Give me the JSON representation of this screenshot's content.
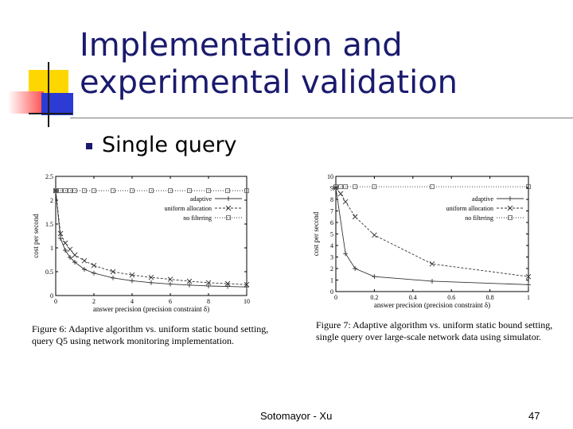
{
  "slide": {
    "title_line1": "Implementation and",
    "title_line2": "experimental validation",
    "bullet": "Single query",
    "footer_author": "Sotomayor - Xu",
    "footer_page": "47",
    "colors": {
      "title": "#1a1a6e",
      "deco_yellow": "#ffd700",
      "deco_red": "#ff4d4d",
      "deco_blue": "#2b3bd4"
    }
  },
  "chart_data": [
    {
      "type": "line",
      "xlabel": "answer precision (precision constraint δ)",
      "ylabel": "cost per second",
      "xlim": [
        0,
        10
      ],
      "ylim": [
        0,
        2.5
      ],
      "xticks": [
        0,
        2,
        4,
        6,
        8,
        10
      ],
      "yticks": [
        0,
        0.5,
        1,
        1.5,
        2,
        2.5
      ],
      "ytick_labels": [
        "0",
        "0.5",
        "1",
        "1.5",
        "2",
        "2.5"
      ],
      "legend_position": "top-right",
      "series": [
        {
          "name": "adaptive",
          "marker": "plus",
          "dash": "solid",
          "x": [
            0,
            0.25,
            0.5,
            0.75,
            1,
            1.5,
            2,
            3,
            4,
            5,
            6,
            7,
            8,
            9,
            10
          ],
          "y": [
            2.2,
            1.2,
            0.95,
            0.8,
            0.7,
            0.55,
            0.47,
            0.37,
            0.31,
            0.27,
            0.24,
            0.22,
            0.2,
            0.19,
            0.18
          ]
        },
        {
          "name": "uniform allocation",
          "marker": "x",
          "dash": "dashed",
          "x": [
            0,
            0.25,
            0.5,
            0.75,
            1,
            1.5,
            2,
            3,
            4,
            5,
            6,
            7,
            8,
            9,
            10
          ],
          "y": [
            2.2,
            1.3,
            1.1,
            0.97,
            0.85,
            0.73,
            0.63,
            0.5,
            0.43,
            0.38,
            0.34,
            0.3,
            0.27,
            0.25,
            0.23
          ]
        },
        {
          "name": "no filtering",
          "marker": "square",
          "dash": "dotted",
          "x": [
            0,
            0.25,
            0.5,
            0.75,
            1,
            1.5,
            2,
            3,
            4,
            5,
            6,
            7,
            8,
            9,
            10
          ],
          "y": [
            2.2,
            2.2,
            2.2,
            2.2,
            2.2,
            2.2,
            2.2,
            2.2,
            2.2,
            2.2,
            2.2,
            2.2,
            2.2,
            2.2,
            2.2
          ]
        }
      ],
      "caption": "Figure 6: Adaptive algorithm vs. uniform static bound setting, query Q5 using network monitoring implementation."
    },
    {
      "type": "line",
      "xlabel": "answer precision (precision constraint δ)",
      "ylabel": "cost per second",
      "xlim": [
        0,
        1
      ],
      "ylim": [
        0,
        10
      ],
      "xticks": [
        0,
        0.2,
        0.4,
        0.6,
        0.8,
        1
      ],
      "yticks": [
        0,
        1,
        2,
        3,
        4,
        5,
        6,
        7,
        8,
        9,
        10
      ],
      "ytick_labels": [
        "0",
        "1",
        "2",
        "3",
        "4",
        "5",
        "6",
        "7",
        "8",
        "9",
        "10"
      ],
      "legend_position": "top-right",
      "series": [
        {
          "name": "adaptive",
          "marker": "plus",
          "dash": "solid",
          "x": [
            0,
            0.05,
            0.1,
            0.2,
            0.5,
            1
          ],
          "y": [
            9,
            3.3,
            2.0,
            1.3,
            0.9,
            0.6
          ]
        },
        {
          "name": "uniform allocation",
          "marker": "x",
          "dash": "dashed",
          "x": [
            0,
            0.025,
            0.05,
            0.1,
            0.2,
            0.5,
            1
          ],
          "y": [
            9,
            8.5,
            7.8,
            6.5,
            4.9,
            2.4,
            1.3
          ]
        },
        {
          "name": "no filtering",
          "marker": "square",
          "dash": "dotted",
          "x": [
            0,
            0.025,
            0.05,
            0.1,
            0.2,
            0.5,
            1
          ],
          "y": [
            9.1,
            9.1,
            9.1,
            9.1,
            9.1,
            9.1,
            9.1
          ]
        }
      ],
      "caption": "Figure 7: Adaptive algorithm vs. uniform static bound setting, single query over large-scale network data using simulator."
    }
  ]
}
